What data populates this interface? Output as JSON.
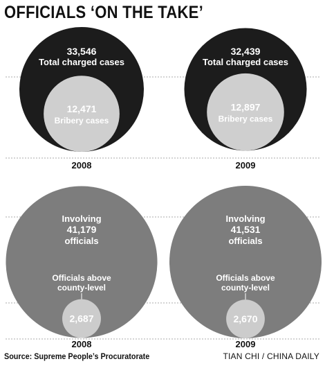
{
  "title": "OFFICIALS ‘ON THE TAKE’",
  "source": "Source: Supreme People’s Procuratorate",
  "credit": "TIAN CHI / CHINA DAILY",
  "colors": {
    "total_circle": "#1c1c1c",
    "bribery_circle": "#cfcfcf",
    "involving_circle": "#7d7d7d",
    "county_circle": "#cccccc",
    "dashed_line": "#aaaaaa",
    "text_light": "#ffffff",
    "text_dark": "#111111"
  },
  "chart_data": [
    {
      "type": "nested-circle",
      "categories": [
        "2008",
        "2009"
      ],
      "series": [
        {
          "name": "Total charged cases",
          "values": [
            33546,
            32439
          ],
          "labels": [
            "33,546",
            "32,439"
          ]
        },
        {
          "name": "Bribery cases",
          "values": [
            12471,
            12897
          ],
          "labels": [
            "12,471",
            "12,897"
          ]
        }
      ]
    },
    {
      "type": "nested-circle",
      "categories": [
        "2008",
        "2009"
      ],
      "series": [
        {
          "name": "officials",
          "prefix": "Involving",
          "values": [
            41179,
            41531
          ],
          "labels": [
            "41,179",
            "41,531"
          ]
        },
        {
          "name": "Officials above county-level",
          "label_lines": [
            "Officials above",
            "county-level"
          ],
          "values": [
            2687,
            2670
          ],
          "labels": [
            "2,687",
            "2,670"
          ]
        }
      ]
    }
  ]
}
